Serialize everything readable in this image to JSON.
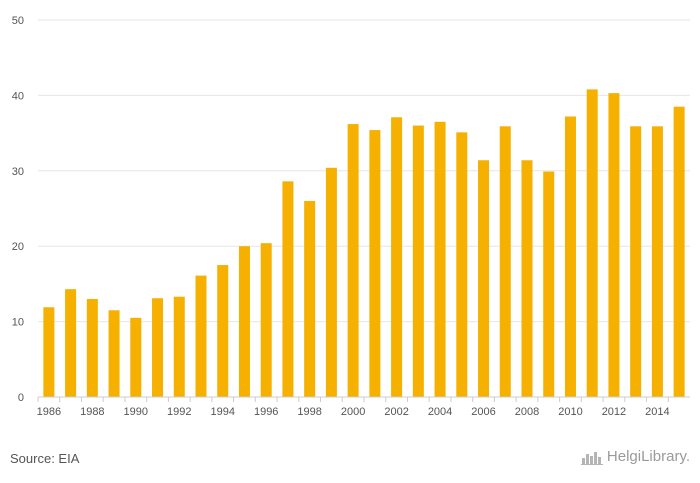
{
  "chart_data": {
    "type": "bar",
    "categories": [
      "1986",
      "1987",
      "1988",
      "1989",
      "1990",
      "1991",
      "1992",
      "1993",
      "1994",
      "1995",
      "1996",
      "1997",
      "1998",
      "1999",
      "2000",
      "2001",
      "2002",
      "2003",
      "2004",
      "2005",
      "2006",
      "2007",
      "2008",
      "2009",
      "2010",
      "2011",
      "2012",
      "2013",
      "2014",
      "2015"
    ],
    "x_tick_labels": [
      "1986",
      "",
      "1988",
      "",
      "1990",
      "",
      "1992",
      "",
      "1994",
      "",
      "1996",
      "",
      "1998",
      "",
      "2000",
      "",
      "2002",
      "",
      "2004",
      "",
      "2006",
      "",
      "2008",
      "",
      "2010",
      "",
      "2012",
      "",
      "2014",
      ""
    ],
    "values": [
      11.9,
      14.3,
      13.0,
      11.5,
      10.5,
      13.1,
      13.3,
      16.1,
      17.5,
      20.0,
      20.4,
      28.6,
      26.0,
      30.4,
      36.2,
      35.4,
      37.1,
      36.0,
      36.5,
      35.1,
      31.4,
      35.9,
      31.4,
      29.9,
      37.2,
      40.8,
      40.3,
      35.9,
      35.9,
      38.5
    ],
    "y_ticks": [
      0,
      10,
      20,
      30,
      40,
      50
    ],
    "ylim": [
      0,
      50
    ],
    "grid": true,
    "bar_color": "#f5b000"
  },
  "footer": {
    "source": "Source: EIA",
    "logo_text": "HelgiLibrary."
  }
}
